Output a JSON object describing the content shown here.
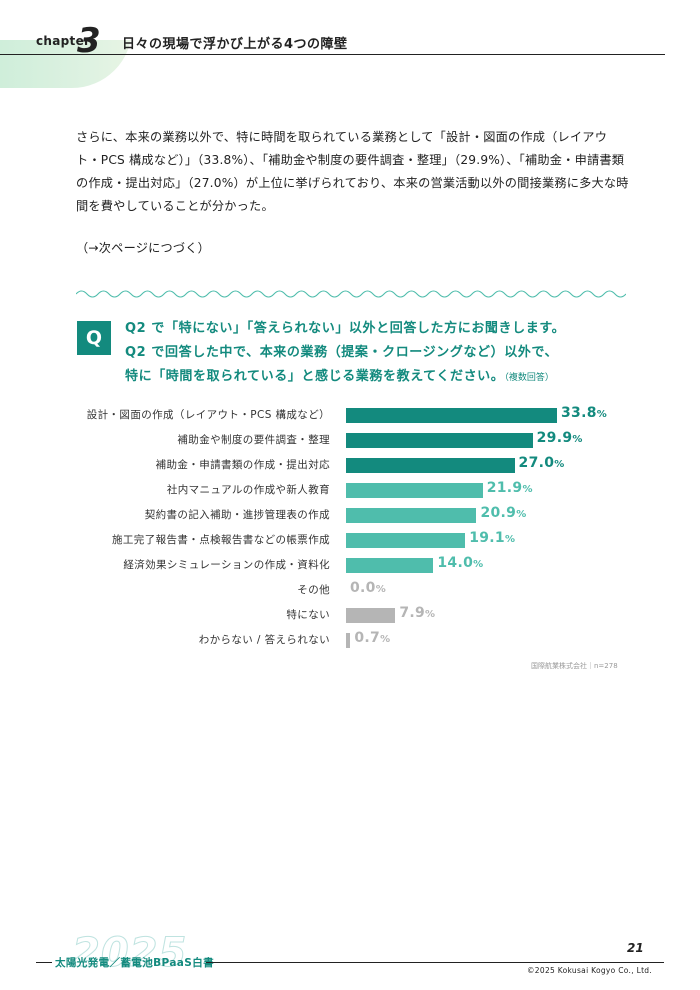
{
  "header": {
    "chapter_word": "chapter",
    "chapter_num": "3",
    "title": "日々の現場で浮かび上がる4つの障壁"
  },
  "body": {
    "paragraph": "さらに、本来の業務以外で、特に時間を取られている業務として「設計・図面の作成（レイアウト・PCS 構成など）」（33.8%）、「補助金や制度の要件調査・整理」（29.9%）、「補助金・申請書類の作成・提出対応」（27.0%）が上位に挙げられており、本来の営業活動以外の間接業務に多大な時間を費やしていることが分かった。",
    "continued": "（→次ページにつづく）"
  },
  "question": {
    "badge": "Q",
    "line1": "Q2 で「特にない」「答えられない」以外と回答した方にお聞きします。",
    "line2": "Q2 で回答した中で、本来の業務（提案・クロージングなど）以外で、",
    "line3": "特に「時間を取られている」と感じる業務を教えてください。",
    "note": "（複数回答）"
  },
  "chart_data": {
    "type": "bar",
    "orientation": "horizontal",
    "unit": "%",
    "categories": [
      "設計・図面の作成（レイアウト・PCS 構成など）",
      "補助金や制度の要件調査・整理",
      "補助金・申請書類の作成・提出対応",
      "社内マニュアルの作成や新人教育",
      "契約書の記入補助・進捗管理表の作成",
      "施工完了報告書・点検報告書などの帳票作成",
      "経済効果シミュレーションの作成・資料化",
      "その他",
      "特にない",
      "わからない / 答えられない"
    ],
    "values": [
      33.8,
      29.9,
      27.0,
      21.9,
      20.9,
      19.1,
      14.0,
      0.0,
      7.9,
      0.7
    ],
    "value_labels": [
      "33.8",
      "29.9",
      "27.0",
      "21.9",
      "20.9",
      "19.1",
      "14.0",
      "0.0",
      "7.9",
      "0.7"
    ],
    "colors": [
      "#138a7e",
      "#138a7e",
      "#138a7e",
      "#4fbdac",
      "#4fbdac",
      "#4fbdac",
      "#4fbdac",
      "#b5b5b5",
      "#b5b5b5",
      "#b5b5b5"
    ],
    "source": "国際航業株式会社｜n=278"
  },
  "footer": {
    "page_number": "21",
    "year": "2025",
    "title": "太陽光発電／蓄電池BPaaS白書",
    "copyright": "©2025 Kokusai Kogyo Co., Ltd."
  },
  "colors": {
    "accent": "#138a7e",
    "accent_light": "#4fbdac",
    "gray": "#b5b5b5",
    "header_blob": "#d6f0dd"
  }
}
